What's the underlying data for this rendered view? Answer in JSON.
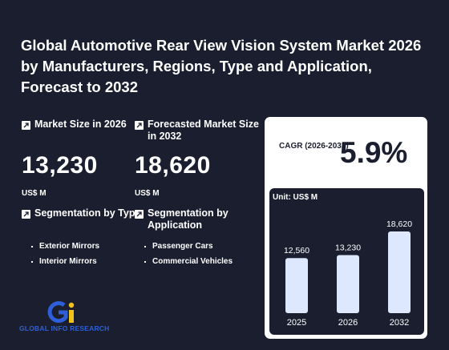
{
  "title": "Global Automotive Rear View Vision System Market 2026 by Manufacturers, Regions, Type and Application, Forecast to 2032",
  "market_size": {
    "label": "Market Size in 2026",
    "value": "13,230",
    "unit": "US$ M"
  },
  "forecast_size": {
    "label": "Forecasted Market Size in 2032",
    "value": "18,620",
    "unit": "US$ M"
  },
  "segmentation_type": {
    "label": "Segmentation by Type",
    "items": [
      "Exterior Mirrors",
      "Interior Mirrors"
    ]
  },
  "segmentation_application": {
    "label": "Segmentation by Application",
    "items": [
      "Passenger Cars",
      "Commercial Vehicles"
    ]
  },
  "cagr": {
    "label": "CAGR (2026-2032)",
    "value": "5.9%"
  },
  "chart_unit": "Unit: US$ M",
  "chart_data": {
    "type": "bar",
    "categories": [
      "2025",
      "2026",
      "2032"
    ],
    "values": [
      12560,
      13230,
      18620
    ],
    "value_labels": [
      "12,560",
      "13,230",
      "18,620"
    ],
    "unit": "US$ M",
    "bar_color": "#dde8ff"
  },
  "logo": {
    "text": "GLOBAL INFO RESEARCH"
  },
  "colors": {
    "background": "#1b1e2e",
    "panel": "#ffffff",
    "accent_blue": "#2f5fd8",
    "accent_yellow": "#f2c21b"
  }
}
